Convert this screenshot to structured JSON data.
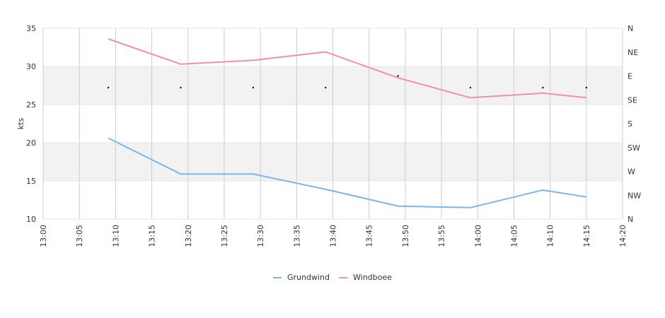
{
  "chart_data": {
    "type": "line",
    "xlabel": "",
    "ylabel": "kts",
    "ylim": [
      10,
      35
    ],
    "y_ticks": [
      "10",
      "15",
      "20",
      "25",
      "30",
      "35"
    ],
    "x_ticks": [
      "13:00",
      "13:05",
      "13:10",
      "13:15",
      "13:20",
      "13:25",
      "13:30",
      "13:35",
      "13:40",
      "13:45",
      "13:50",
      "13:55",
      "14:00",
      "14:05",
      "14:10",
      "14:15",
      "14:20"
    ],
    "xlim": [
      "13:00",
      "14:20"
    ],
    "x": [
      "13:09",
      "13:19",
      "13:29",
      "13:39",
      "13:49",
      "13:59",
      "14:09",
      "14:15"
    ],
    "series": [
      {
        "name": "Grundwind",
        "color": "#7cb5ec",
        "values": [
          20.6,
          15.9,
          15.9,
          13.9,
          11.7,
          11.5,
          13.8,
          12.9
        ]
      },
      {
        "name": "Windboee",
        "color": "#f08cbe",
        "values": [
          33.6,
          30.3,
          30.8,
          31.9,
          28.5,
          25.9,
          26.5,
          25.9
        ]
      }
    ],
    "direction_axis": {
      "labels": [
        "N",
        "NW",
        "W",
        "SW",
        "S",
        "SE",
        "E",
        "NE",
        "N"
      ],
      "range": [
        0,
        360
      ]
    },
    "direction_points": [
      {
        "x": "13:09",
        "deg": 248
      },
      {
        "x": "13:19",
        "deg": 248
      },
      {
        "x": "13:29",
        "deg": 248
      },
      {
        "x": "13:39",
        "deg": 248
      },
      {
        "x": "13:49",
        "deg": 270
      },
      {
        "x": "13:59",
        "deg": 248
      },
      {
        "x": "14:09",
        "deg": 248
      },
      {
        "x": "14:15",
        "deg": 248
      }
    ],
    "grid": true,
    "alternate_bands": true,
    "legend_position": "bottom-center",
    "colors": {
      "band": "#f2f2f2",
      "grid": "#cccccc",
      "axis": "#888888"
    }
  }
}
